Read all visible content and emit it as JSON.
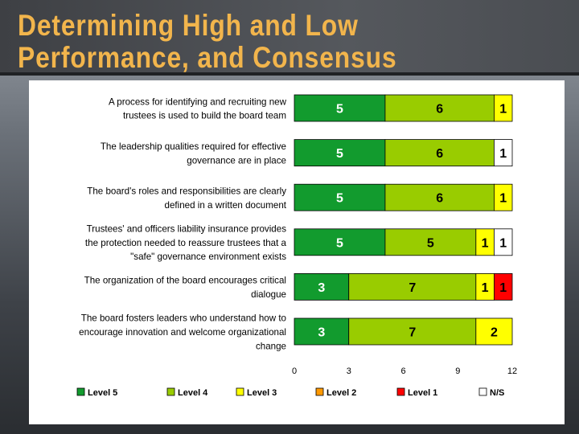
{
  "slide": {
    "title_line1": "Determining High and Low",
    "title_line2": "Performance, and Consensus"
  },
  "chart_data": {
    "type": "bar",
    "orientation": "horizontal",
    "stacked": true,
    "categories": [
      [
        "A process for identifying and recruiting new",
        "trustees is used to build the board team"
      ],
      [
        "The leadership qualities required for effective",
        "governance are in place"
      ],
      [
        "The board's roles and responsibilities are clearly",
        "defined in a written document"
      ],
      [
        "Trustees' and officers liability insurance provides",
        "the protection needed to reassure trustees that a",
        "\"safe\" governance environment exists"
      ],
      [
        "The organization of the board encourages critical",
        "dialogue"
      ],
      [
        "The board fosters leaders who understand how to",
        "encourage innovation and welcome organizational",
        "change"
      ]
    ],
    "series": [
      {
        "name": "Level 5",
        "color": "#129b2e",
        "values": [
          5,
          5,
          5,
          5,
          3,
          3
        ]
      },
      {
        "name": "Level 4",
        "color": "#99cc00",
        "values": [
          6,
          6,
          6,
          5,
          7,
          7
        ]
      },
      {
        "name": "Level 3",
        "color": "#ffff00",
        "values": [
          1,
          0,
          1,
          1,
          1,
          2
        ]
      },
      {
        "name": "Level 2",
        "color": "#ff9900",
        "values": [
          0,
          0,
          0,
          0,
          0,
          0
        ]
      },
      {
        "name": "Level 1",
        "color": "#ff0000",
        "values": [
          0,
          0,
          0,
          0,
          1,
          0
        ]
      },
      {
        "name": "N/S",
        "color": "#ffffff",
        "values": [
          0,
          1,
          0,
          1,
          0,
          0
        ]
      }
    ],
    "xlim": [
      0,
      12
    ],
    "xticks": [
      0,
      3,
      6,
      9,
      12
    ],
    "legend_position": "bottom",
    "grid": false,
    "show_value_labels": true
  }
}
